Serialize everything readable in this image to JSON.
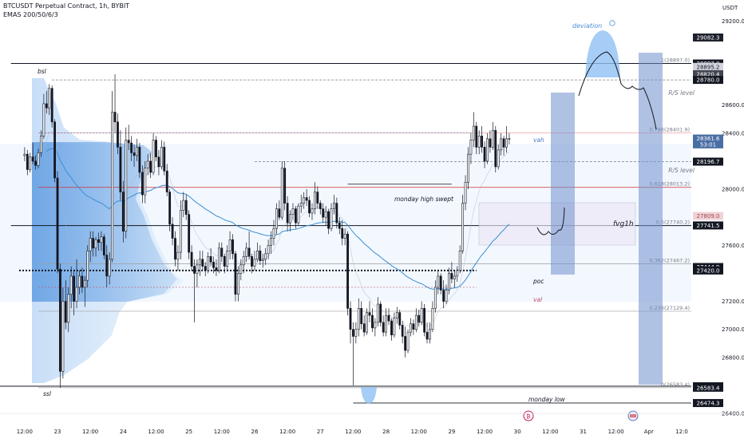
{
  "header": {
    "title": "BTCUSDT Perpetual Contract, 1h, BYBIT",
    "indicator": "EMAS 200/50/6/3",
    "currency": "USDT"
  },
  "chart_data": {
    "type": "candlestick",
    "y_ticks": [
      "29200.0",
      "28600.0",
      "28400.0",
      "28000.0",
      "27600.0",
      "27200.0",
      "27000.0",
      "26800.0",
      "26400.0"
    ],
    "x_ticks": [
      {
        "label": "12:00",
        "t": 0
      },
      {
        "label": "23",
        "t": 12
      },
      {
        "label": "12:00",
        "t": 24
      },
      {
        "label": "24",
        "t": 36
      },
      {
        "label": "12:00",
        "t": 48
      },
      {
        "label": "25",
        "t": 60
      },
      {
        "label": "12:00",
        "t": 72
      },
      {
        "label": "26",
        "t": 84
      },
      {
        "label": "12:00",
        "t": 96
      },
      {
        "label": "27",
        "t": 108
      },
      {
        "label": "12:00",
        "t": 120
      },
      {
        "label": "28",
        "t": 132
      },
      {
        "label": "12:00",
        "t": 144
      },
      {
        "label": "29",
        "t": 156
      },
      {
        "label": "12:00",
        "t": 168
      },
      {
        "label": "30",
        "t": 180
      },
      {
        "label": "12:00",
        "t": 192
      },
      {
        "label": "31",
        "t": 204
      },
      {
        "label": "12:00",
        "t": 216
      },
      {
        "label": "Apr",
        "t": 228
      },
      {
        "label": "12:0",
        "t": 240
      }
    ],
    "y_range": [
      26400,
      29350
    ],
    "t_range": [
      -9,
      243.5
    ],
    "price_tags": [
      {
        "label": "29082.3",
        "price": 29082.3,
        "bg": "#1e222d",
        "fg": "#ffffff"
      },
      {
        "label": "28897.0",
        "price": 28897.0,
        "bg": "#131722",
        "fg": "#ffffff"
      },
      {
        "label": "28895.2",
        "price": 28873.0,
        "bg": "#d1d4dc",
        "fg": "#131722"
      },
      {
        "label": "28820.4",
        "price": 28820.4,
        "bg": "#434651",
        "fg": "#ffffff"
      },
      {
        "label": "28780.0",
        "price": 28780.0,
        "bg": "#131722",
        "fg": "#ffffff"
      },
      {
        "label": "28361.6",
        "price": 28361.6,
        "bg": "#4a6fa5",
        "fg": "#ffffff"
      },
      {
        "label": "53:01",
        "price": 28320.0,
        "bg": "#4a6fa5",
        "fg": "#ffffff"
      },
      {
        "label": "28196.7",
        "price": 28196.7,
        "bg": "#131722",
        "fg": "#ffffff"
      },
      {
        "label": "27809.0",
        "price": 27809.0,
        "bg": "#f0d2d6",
        "fg": "#a04a56"
      },
      {
        "label": "27741.5",
        "price": 27741.5,
        "bg": "#131722",
        "fg": "#ffffff"
      },
      {
        "label": "27444.9",
        "price": 27444.9,
        "bg": "#131722",
        "fg": "#ffffff"
      },
      {
        "label": "27420.0",
        "price": 27420.0,
        "bg": "#131722",
        "fg": "#ffffff"
      },
      {
        "label": "26594.3",
        "price": 26594.3,
        "bg": "#131722",
        "fg": "#ffffff"
      },
      {
        "label": "26583.4",
        "price": 26583.4,
        "bg": "#131722",
        "fg": "#ffffff"
      },
      {
        "label": "26474.3",
        "price": 26474.3,
        "bg": "#131722",
        "fg": "#ffffff"
      }
    ],
    "fib_levels": [
      {
        "label": "1(28897.0)",
        "price": 28897.0,
        "color": "#9e9e9e"
      },
      {
        "label": "0.786(28401.9)",
        "price": 28401.9,
        "color": "#f0a0a0"
      },
      {
        "label": "0.618(28013.2)",
        "price": 28013.2,
        "color": "#d32f2f"
      },
      {
        "label": "0.5(27740.2)",
        "price": 27740.2,
        "color": "#131722"
      },
      {
        "label": "0.382(27467.2)",
        "price": 27467.2,
        "color": "#9e9e9e"
      },
      {
        "label": "0.236(27129.4)",
        "price": 27129.4,
        "color": "#9e9e9e"
      },
      {
        "label": "0(26583.4)",
        "price": 26583.4,
        "color": "#9e9e9e"
      }
    ],
    "annotations": {
      "bsl": "bsl",
      "ssl": "ssl",
      "rs_level_1": "R/S level",
      "rs_level_2": "R/S level",
      "vah": "vah",
      "poc": "poc",
      "val": "val",
      "monday_high": "monday high swept",
      "monday_low": "monday low",
      "fvg": "fvg1h",
      "deviation": "deviation"
    },
    "candles": [
      [
        28240,
        28300,
        28200,
        28250
      ],
      [
        28250,
        28280,
        28100,
        28140
      ],
      [
        28140,
        28260,
        28120,
        28230
      ],
      [
        28230,
        28330,
        28180,
        28200
      ],
      [
        28200,
        28240,
        28140,
        28170
      ],
      [
        28170,
        28290,
        28150,
        28260
      ],
      [
        28260,
        28420,
        28230,
        28380
      ],
      [
        28380,
        28680,
        28360,
        28610
      ],
      [
        28610,
        28700,
        28540,
        28580
      ],
      [
        28580,
        28750,
        28530,
        28720
      ],
      [
        28720,
        28740,
        28440,
        28480
      ],
      [
        28480,
        28500,
        28050,
        28080
      ],
      [
        28080,
        28130,
        27400,
        27430
      ],
      [
        27430,
        27470,
        26583,
        26700
      ],
      [
        26700,
        27300,
        26650,
        27200
      ],
      [
        27200,
        27350,
        27000,
        27050
      ],
      [
        27050,
        27300,
        26980,
        27250
      ],
      [
        27250,
        27450,
        27150,
        27380
      ],
      [
        27380,
        27420,
        27100,
        27200
      ],
      [
        27200,
        27500,
        27150,
        27300
      ],
      [
        27300,
        27420,
        27250,
        27380
      ],
      [
        27380,
        27440,
        27260,
        27300
      ],
      [
        27300,
        27380,
        27160,
        27350
      ],
      [
        27350,
        27600,
        27300,
        27560
      ],
      [
        27560,
        27700,
        27480,
        27650
      ],
      [
        27650,
        27700,
        27520,
        27580
      ],
      [
        27580,
        27660,
        27520,
        27640
      ],
      [
        27640,
        27690,
        27560,
        27620
      ],
      [
        27620,
        27700,
        27560,
        27660
      ],
      [
        27660,
        27680,
        27500,
        27530
      ],
      [
        27530,
        27600,
        27300,
        27380
      ],
      [
        27380,
        27550,
        27320,
        27500
      ],
      [
        27500,
        28700,
        27480,
        28550
      ],
      [
        28550,
        28820,
        28400,
        28480
      ],
      [
        28480,
        28540,
        28250,
        28300
      ],
      [
        28300,
        28420,
        27920,
        27980
      ],
      [
        27980,
        28060,
        27620,
        27700
      ],
      [
        27700,
        28440,
        27650,
        28350
      ],
      [
        28350,
        28460,
        28280,
        28330
      ],
      [
        28330,
        28380,
        28200,
        28260
      ],
      [
        28260,
        28320,
        28160,
        28240
      ],
      [
        28240,
        28360,
        28200,
        28300
      ],
      [
        28300,
        28330,
        28080,
        28120
      ],
      [
        28120,
        28170,
        27900,
        27960
      ],
      [
        27960,
        28200,
        27900,
        28150
      ],
      [
        28150,
        28250,
        28100,
        28200
      ],
      [
        28200,
        28260,
        28080,
        28120
      ],
      [
        28120,
        28400,
        28100,
        28350
      ],
      [
        28350,
        28380,
        28200,
        28230
      ],
      [
        28230,
        28280,
        28100,
        28160
      ],
      [
        28160,
        28350,
        28140,
        28300
      ],
      [
        28300,
        28340,
        28100,
        28130
      ],
      [
        28130,
        28180,
        27950,
        27980
      ],
      [
        27980,
        28000,
        27700,
        27750
      ],
      [
        27750,
        27800,
        27600,
        27650
      ],
      [
        27650,
        27700,
        27450,
        27500
      ],
      [
        27500,
        27600,
        27420,
        27550
      ],
      [
        27550,
        27920,
        27500,
        27850
      ],
      [
        27850,
        27980,
        27800,
        27920
      ],
      [
        27920,
        27960,
        27780,
        27820
      ],
      [
        27820,
        27850,
        27500,
        27550
      ],
      [
        27550,
        27600,
        27420,
        27450
      ],
      [
        27450,
        27500,
        27050,
        27400
      ],
      [
        27400,
        27500,
        27300,
        27460
      ],
      [
        27460,
        27560,
        27380,
        27500
      ],
      [
        27500,
        27560,
        27420,
        27450
      ],
      [
        27450,
        27480,
        27380,
        27420
      ],
      [
        27420,
        27550,
        27400,
        27520
      ],
      [
        27520,
        27580,
        27450,
        27480
      ],
      [
        27480,
        27520,
        27400,
        27440
      ],
      [
        27440,
        27500,
        27380,
        27420
      ],
      [
        27420,
        27620,
        27400,
        27580
      ],
      [
        27580,
        27620,
        27480,
        27520
      ],
      [
        27520,
        27540,
        27400,
        27450
      ],
      [
        27450,
        27600,
        27420,
        27560
      ],
      [
        27560,
        27700,
        27500,
        27640
      ],
      [
        27640,
        27680,
        27500,
        27540
      ],
      [
        27540,
        27560,
        27200,
        27250
      ],
      [
        27250,
        27450,
        27200,
        27400
      ],
      [
        27400,
        27500,
        27350,
        27460
      ],
      [
        27460,
        27560,
        27400,
        27520
      ],
      [
        27520,
        27620,
        27480,
        27580
      ],
      [
        27580,
        27700,
        27500,
        27520
      ],
      [
        27520,
        27540,
        27400,
        27450
      ],
      [
        27450,
        27560,
        27420,
        27500
      ],
      [
        27500,
        27620,
        27480,
        27560
      ],
      [
        27560,
        27600,
        27460,
        27490
      ],
      [
        27490,
        27540,
        27440,
        27500
      ],
      [
        27500,
        27580,
        27460,
        27540
      ],
      [
        27540,
        27640,
        27500,
        27600
      ],
      [
        27600,
        27700,
        27540,
        27650
      ],
      [
        27650,
        27780,
        27600,
        27720
      ],
      [
        27720,
        27900,
        27680,
        27860
      ],
      [
        27860,
        27920,
        27780,
        27800
      ],
      [
        27800,
        28200,
        27780,
        28150
      ],
      [
        28150,
        28200,
        27850,
        27900
      ],
      [
        27900,
        27950,
        27700,
        27760
      ],
      [
        27760,
        27850,
        27700,
        27820
      ],
      [
        27820,
        27900,
        27780,
        27860
      ],
      [
        27860,
        27880,
        27720,
        27760
      ],
      [
        27760,
        27900,
        27740,
        27880
      ],
      [
        27880,
        27960,
        27830,
        27900
      ],
      [
        27900,
        27980,
        27860,
        27940
      ],
      [
        27940,
        28000,
        27880,
        27920
      ],
      [
        27920,
        27950,
        27800,
        27830
      ],
      [
        27830,
        27900,
        27780,
        27860
      ],
      [
        27860,
        28050,
        27820,
        27980
      ],
      [
        27980,
        28020,
        27860,
        27900
      ],
      [
        27900,
        27920,
        27820,
        27860
      ],
      [
        27860,
        27900,
        27760,
        27800
      ],
      [
        27800,
        27880,
        27740,
        27840
      ],
      [
        27840,
        27860,
        27680,
        27720
      ],
      [
        27720,
        27900,
        27700,
        27860
      ],
      [
        27860,
        27960,
        27820,
        27900
      ],
      [
        27900,
        27940,
        27720,
        27760
      ],
      [
        27760,
        27800,
        27680,
        27720
      ],
      [
        27720,
        27780,
        27600,
        27650
      ],
      [
        27650,
        27720,
        27600,
        27680
      ],
      [
        27680,
        27700,
        27100,
        27150
      ],
      [
        27150,
        27200,
        26900,
        27000
      ],
      [
        27000,
        27050,
        26600,
        26950
      ],
      [
        26950,
        27050,
        26900,
        27000
      ],
      [
        27000,
        27220,
        26950,
        27150
      ],
      [
        27150,
        27200,
        27000,
        27040
      ],
      [
        27040,
        27100,
        26950,
        26980
      ],
      [
        26980,
        27150,
        26960,
        27120
      ],
      [
        27120,
        27200,
        27050,
        27100
      ],
      [
        27100,
        27150,
        26980,
        27010
      ],
      [
        27010,
        27080,
        26950,
        27050
      ],
      [
        27050,
        27230,
        27020,
        27180
      ],
      [
        27180,
        27200,
        27020,
        27050
      ],
      [
        27050,
        27100,
        26950,
        26980
      ],
      [
        26980,
        27150,
        26950,
        27100
      ],
      [
        27100,
        27150,
        27030,
        27060
      ],
      [
        27060,
        27080,
        26920,
        26960
      ],
      [
        26960,
        27120,
        26940,
        27080
      ],
      [
        27080,
        27160,
        27040,
        27120
      ],
      [
        27120,
        27140,
        27000,
        27030
      ],
      [
        27030,
        27060,
        26900,
        26950
      ],
      [
        26950,
        27020,
        26800,
        26850
      ],
      [
        26850,
        27000,
        26830,
        26980
      ],
      [
        26980,
        27080,
        26950,
        27040
      ],
      [
        27040,
        27070,
        26960,
        27000
      ],
      [
        27000,
        27150,
        26980,
        27100
      ],
      [
        27100,
        27140,
        27020,
        27050
      ],
      [
        27050,
        27200,
        27030,
        27150
      ],
      [
        27150,
        27180,
        26950,
        26980
      ],
      [
        26980,
        27050,
        26900,
        26930
      ],
      [
        26930,
        27050,
        26900,
        27000
      ],
      [
        27000,
        27200,
        26980,
        27150
      ],
      [
        27150,
        27350,
        27120,
        27300
      ],
      [
        27300,
        27420,
        27250,
        27380
      ],
      [
        27380,
        27400,
        27250,
        27280
      ],
      [
        27280,
        27350,
        27150,
        27200
      ],
      [
        27200,
        27320,
        27180,
        27280
      ],
      [
        27280,
        27440,
        27250,
        27400
      ],
      [
        27400,
        27480,
        27330,
        27360
      ],
      [
        27360,
        27420,
        27300,
        27380
      ],
      [
        27380,
        27450,
        27340,
        27420
      ],
      [
        27420,
        27600,
        27400,
        27560
      ],
      [
        27560,
        27960,
        27540,
        27900
      ],
      [
        27900,
        28100,
        27850,
        28050
      ],
      [
        28050,
        28300,
        28000,
        28250
      ],
      [
        28250,
        28400,
        28180,
        28350
      ],
      [
        28350,
        28550,
        28300,
        28450
      ],
      [
        28450,
        28480,
        28250,
        28300
      ],
      [
        28300,
        28420,
        28250,
        28380
      ],
      [
        28380,
        28450,
        28260,
        28300
      ],
      [
        28300,
        28340,
        28150,
        28200
      ],
      [
        28200,
        28400,
        28180,
        28360
      ],
      [
        28360,
        28420,
        28260,
        28300
      ],
      [
        28300,
        28480,
        28280,
        28420
      ],
      [
        28420,
        28450,
        28120,
        28160
      ],
      [
        28160,
        28320,
        28140,
        28280
      ],
      [
        28280,
        28400,
        28240,
        28360
      ],
      [
        28360,
        28380,
        28240,
        28300
      ],
      [
        28300,
        28450,
        28260,
        28360
      ],
      [
        28360,
        28400,
        28320,
        28361.6
      ]
    ]
  }
}
